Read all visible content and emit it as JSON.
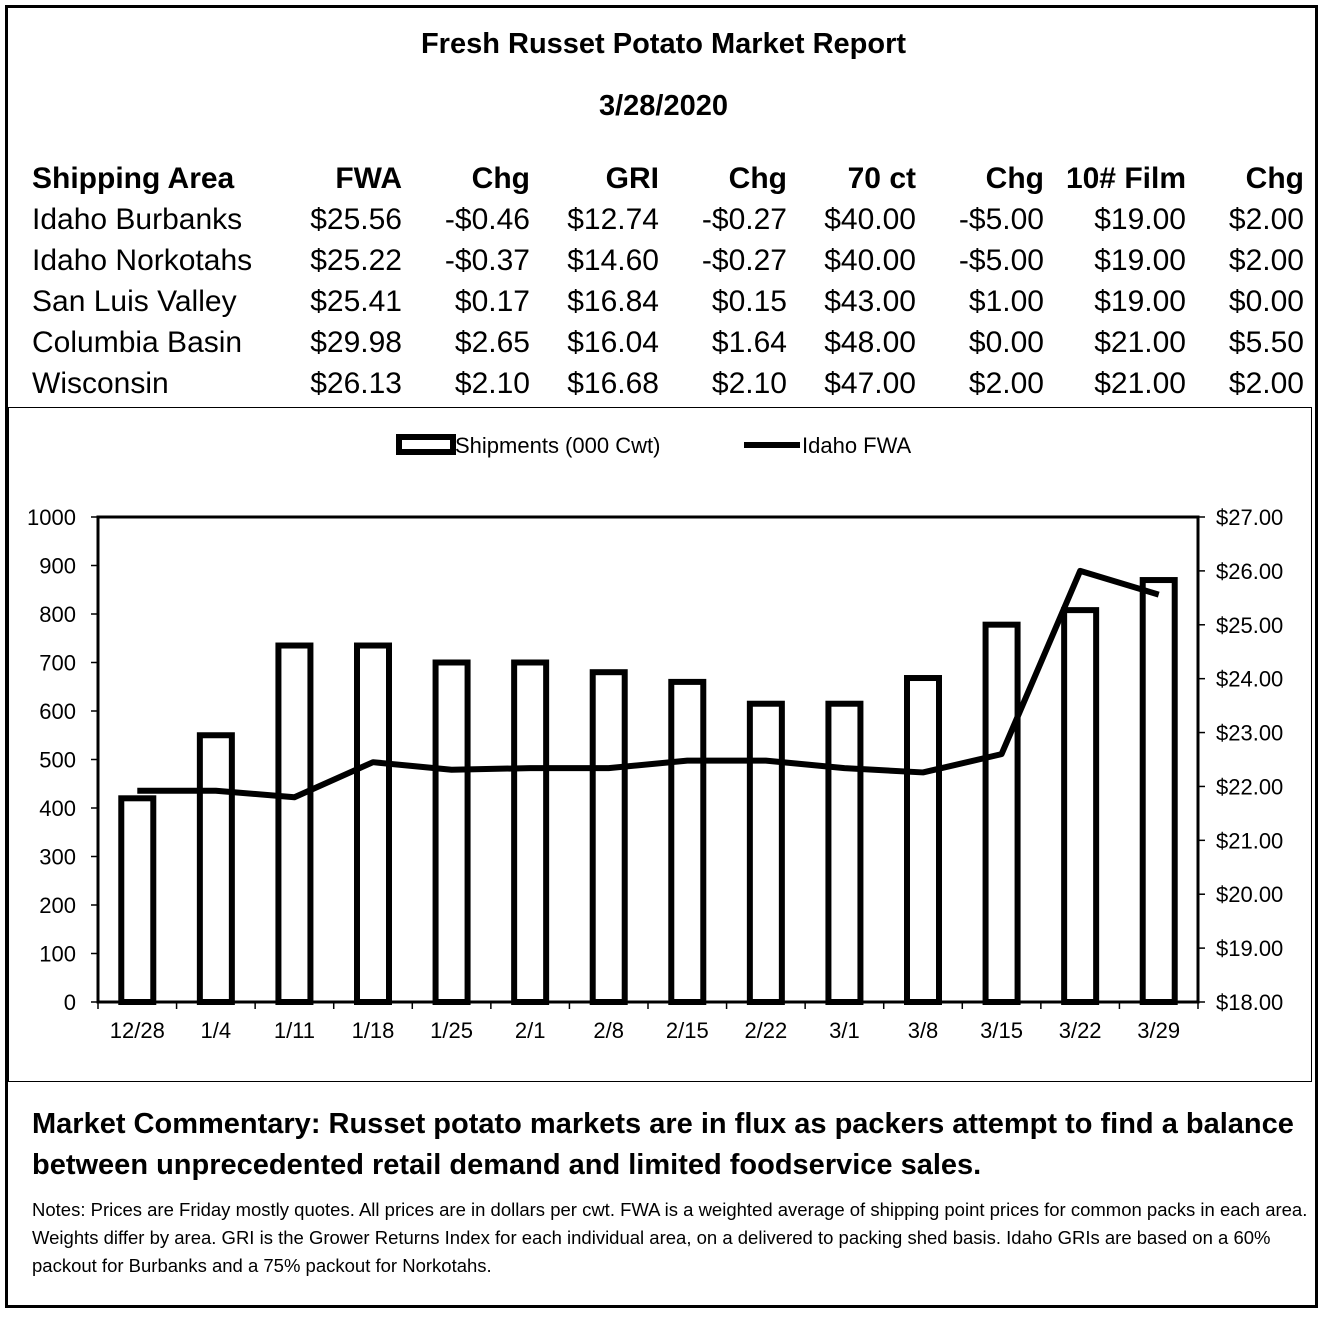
{
  "report": {
    "title": "Fresh Russet Potato Market Report",
    "date": "3/28/2020"
  },
  "price_table": {
    "headers": [
      "Shipping Area",
      "FWA",
      "Chg",
      "GRI",
      "Chg",
      "70 ct",
      "Chg",
      "10# Film",
      "Chg"
    ],
    "rows": [
      [
        "Idaho Burbanks",
        "$25.56",
        "-$0.46",
        "$12.74",
        "-$0.27",
        "$40.00",
        "-$5.00",
        "$19.00",
        "$2.00"
      ],
      [
        "Idaho Norkotahs",
        "$25.22",
        "-$0.37",
        "$14.60",
        "-$0.27",
        "$40.00",
        "-$5.00",
        "$19.00",
        "$2.00"
      ],
      [
        "San Luis Valley",
        "$25.41",
        "$0.17",
        "$16.84",
        "$0.15",
        "$43.00",
        "$1.00",
        "$19.00",
        "$0.00"
      ],
      [
        "Columbia Basin",
        "$29.98",
        "$2.65",
        "$16.04",
        "$1.64",
        "$48.00",
        "$0.00",
        "$21.00",
        "$5.50"
      ],
      [
        "Wisconsin",
        "$26.13",
        "$2.10",
        "$16.68",
        "$2.10",
        "$47.00",
        "$2.00",
        "$21.00",
        "$2.00"
      ]
    ]
  },
  "chart_data": {
    "type": "bar",
    "categories": [
      "12/28",
      "1/4",
      "1/11",
      "1/18",
      "1/25",
      "2/1",
      "2/8",
      "2/15",
      "2/22",
      "3/1",
      "3/8",
      "3/15",
      "3/22",
      "3/29"
    ],
    "series": [
      {
        "name": "Shipments (000 Cwt)",
        "type": "bar",
        "axis": "left",
        "values": [
          420,
          550,
          735,
          735,
          700,
          700,
          680,
          660,
          615,
          615,
          668,
          778,
          808,
          870
        ]
      },
      {
        "name": "Idaho FWA",
        "type": "line",
        "axis": "right",
        "values": [
          21.92,
          21.92,
          21.8,
          22.45,
          22.31,
          22.34,
          22.34,
          22.48,
          22.48,
          22.34,
          22.26,
          22.6,
          26.0,
          25.56
        ]
      }
    ],
    "y_left": {
      "min": 0,
      "max": 1000,
      "step": 100,
      "ticks": [
        "0",
        "100",
        "200",
        "300",
        "400",
        "500",
        "600",
        "700",
        "800",
        "900",
        "1000"
      ]
    },
    "y_right": {
      "min": 18,
      "max": 27,
      "step": 1,
      "ticks": [
        "$18.00",
        "$19.00",
        "$20.00",
        "$21.00",
        "$22.00",
        "$23.00",
        "$24.00",
        "$25.00",
        "$26.00",
        "$27.00"
      ]
    },
    "legend_position": "top-center",
    "grid": false
  },
  "commentary": "Market Commentary: Russet potato markets are in flux as packers attempt to find a balance between unprecedented retail demand and limited foodservice sales.",
  "notes": "Notes: Prices are Friday mostly quotes. All prices are in dollars per cwt. FWA is a weighted average of shipping point prices for common packs in each area. Weights differ by area. GRI is the Grower Returns Index for each individual area, on a delivered to packing shed basis. Idaho GRIs are based on a 60% packout for Burbanks and a 75% packout for Norkotahs."
}
